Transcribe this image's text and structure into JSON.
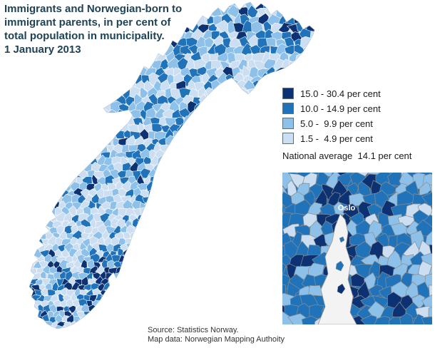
{
  "title": {
    "lines": [
      "Immigrants and Norwegian-born to",
      "immigrant parents, in per cent of",
      "total population in municipality.",
      "1 January 2013"
    ]
  },
  "colors": {
    "title_text": "#1d4355"
  },
  "legend": {
    "items": [
      {
        "label": "15.0 - 30.4 per cent",
        "color": "#0d3273"
      },
      {
        "label": "10.0 - 14.9 per cent",
        "color": "#2173b9"
      },
      {
        "label": "5.0 -  9.9 per cent",
        "color": "#8ec1e9"
      },
      {
        "label": "1.5 -  4.9 per cent",
        "color": "#ccdff2"
      }
    ],
    "national_average": "National average  14.1 per cent"
  },
  "map": {
    "inset_label": "Oslo"
  },
  "source": {
    "lines": [
      "Source: Statistics Norway.",
      "Map data: Norwegian Mapping Authoity"
    ]
  }
}
